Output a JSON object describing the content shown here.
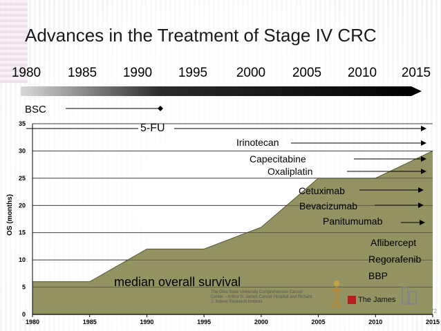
{
  "slide_title": "Advances in the Treatment of Stage IV CRC",
  "timeline": {
    "years": [
      "1980",
      "1985",
      "1990",
      "1995",
      "2000",
      "2005",
      "2010",
      "2015"
    ],
    "bsc_label": "BSC"
  },
  "treatments": [
    {
      "label": "5-FU",
      "key": "fu"
    },
    {
      "label": "Irinotecan",
      "key": "irinotecan"
    },
    {
      "label": "Capecitabine",
      "key": "capecitabine"
    },
    {
      "label": "Oxaliplatin",
      "key": "oxaliplatin"
    },
    {
      "label": "Cetuximab",
      "key": "cetuximab"
    },
    {
      "label": "Bevacizumab",
      "key": "bevacizumab"
    },
    {
      "label": "Panitumumab",
      "key": "panitumumab"
    },
    {
      "label": "Aflibercept",
      "key": "aflibercept"
    },
    {
      "label": "Regorafenib",
      "key": "regorafenib"
    },
    {
      "label": "BBP",
      "key": "bbp"
    }
  ],
  "area_label": "median overall survival",
  "footer": {
    "osu_text": "The Ohio State University Comprehensive Cancer Center – Arthur G. James Cancer Hospital and Richard J. Solove Research Institute",
    "james_text": "The James",
    "page_number": "72"
  },
  "chart_data": {
    "type": "area",
    "title": "",
    "xlabel": "",
    "ylabel": "OS (months)",
    "x": [
      1980,
      1985,
      1990,
      1995,
      2000,
      2005,
      2010,
      2015
    ],
    "values": [
      6,
      6,
      12,
      12,
      16,
      25,
      25,
      30
    ],
    "xlim": [
      1980,
      2015
    ],
    "ylim": [
      0,
      35
    ],
    "y_ticks": [
      0,
      5,
      10,
      15,
      20,
      25,
      30,
      35
    ],
    "x_tick_labels": [
      "1980",
      "1985",
      "1990",
      "1995",
      "2000",
      "2005",
      "2010",
      "2015"
    ],
    "grid": true,
    "fill_color": "#8c8c5a",
    "series_name": "median overall survival"
  }
}
